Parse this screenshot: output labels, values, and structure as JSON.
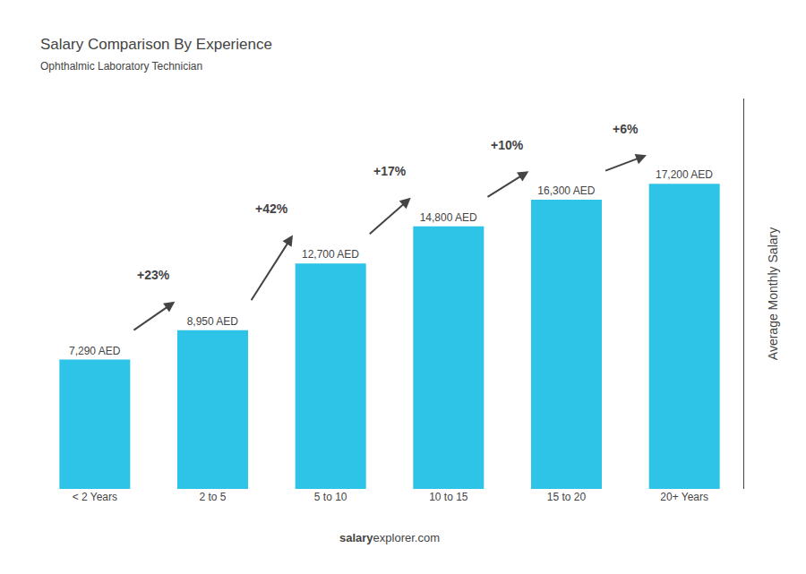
{
  "chart_data": {
    "type": "bar",
    "title": "Salary Comparison By Experience",
    "subtitle": "Ophthalmic Laboratory Technician",
    "categories": [
      "< 2 Years",
      "2 to 5",
      "5 to 10",
      "10 to 15",
      "15 to 20",
      "20+ Years"
    ],
    "values": [
      7290,
      8950,
      12700,
      14800,
      16300,
      17200
    ],
    "value_labels": [
      "7,290 AED",
      "8,950 AED",
      "12,700 AED",
      "14,800 AED",
      "16,300 AED",
      "17,200 AED"
    ],
    "data_labels": true,
    "color": "#2ec4e8",
    "ylabel": "Average Monthly Salary",
    "ylim": [
      0,
      22000
    ],
    "tick_labels": "x",
    "grid": false,
    "annotations": [
      "+23%",
      "+42%",
      "+17%",
      "+10%",
      "+6%"
    ],
    "footer": [
      "salary",
      "explorer.com"
    ]
  }
}
